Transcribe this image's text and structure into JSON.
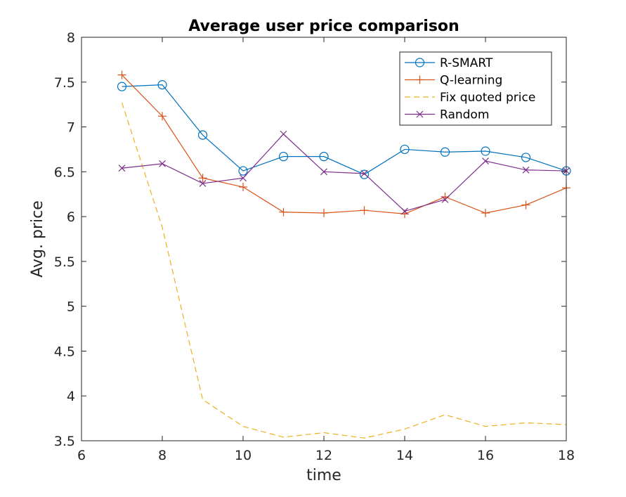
{
  "chart_data": {
    "type": "line",
    "title": "Average user price comparison",
    "xlabel": "time",
    "ylabel": "Avg. price",
    "xlim": [
      6,
      18
    ],
    "ylim": [
      3.5,
      8
    ],
    "xticks": [
      "6",
      "8",
      "10",
      "12",
      "14",
      "16",
      "18"
    ],
    "yticks": [
      "3.5",
      "4",
      "4.5",
      "5",
      "5.5",
      "6",
      "6.5",
      "7",
      "7.5",
      "8"
    ],
    "grid": false,
    "legend_position": "top-right",
    "x": [
      7,
      8,
      9,
      10,
      11,
      12,
      13,
      14,
      15,
      16,
      17,
      18
    ],
    "series": [
      {
        "name": "R-SMART",
        "color": "#0072BD",
        "marker": "circle",
        "linestyle": "solid",
        "values": [
          7.45,
          7.47,
          6.91,
          6.51,
          6.67,
          6.67,
          6.47,
          6.75,
          6.72,
          6.73,
          6.66,
          6.51
        ]
      },
      {
        "name": "Q-learning",
        "color": "#D95319",
        "marker": "plus",
        "linestyle": "solid",
        "values": [
          7.58,
          7.12,
          6.43,
          6.33,
          6.05,
          6.04,
          6.07,
          6.03,
          6.22,
          6.04,
          6.13,
          6.32
        ]
      },
      {
        "name": "Fix quoted price",
        "color": "#EDB120",
        "marker": "none",
        "linestyle": "dashed",
        "values": [
          7.27,
          5.88,
          3.96,
          3.66,
          3.54,
          3.59,
          3.53,
          3.63,
          3.79,
          3.66,
          3.7,
          3.68
        ]
      },
      {
        "name": "Random",
        "color": "#7E2F8E",
        "marker": "x",
        "linestyle": "solid",
        "values": [
          6.54,
          6.59,
          6.37,
          6.43,
          6.92,
          6.5,
          6.48,
          6.06,
          6.19,
          6.62,
          6.52,
          6.51
        ]
      }
    ]
  }
}
